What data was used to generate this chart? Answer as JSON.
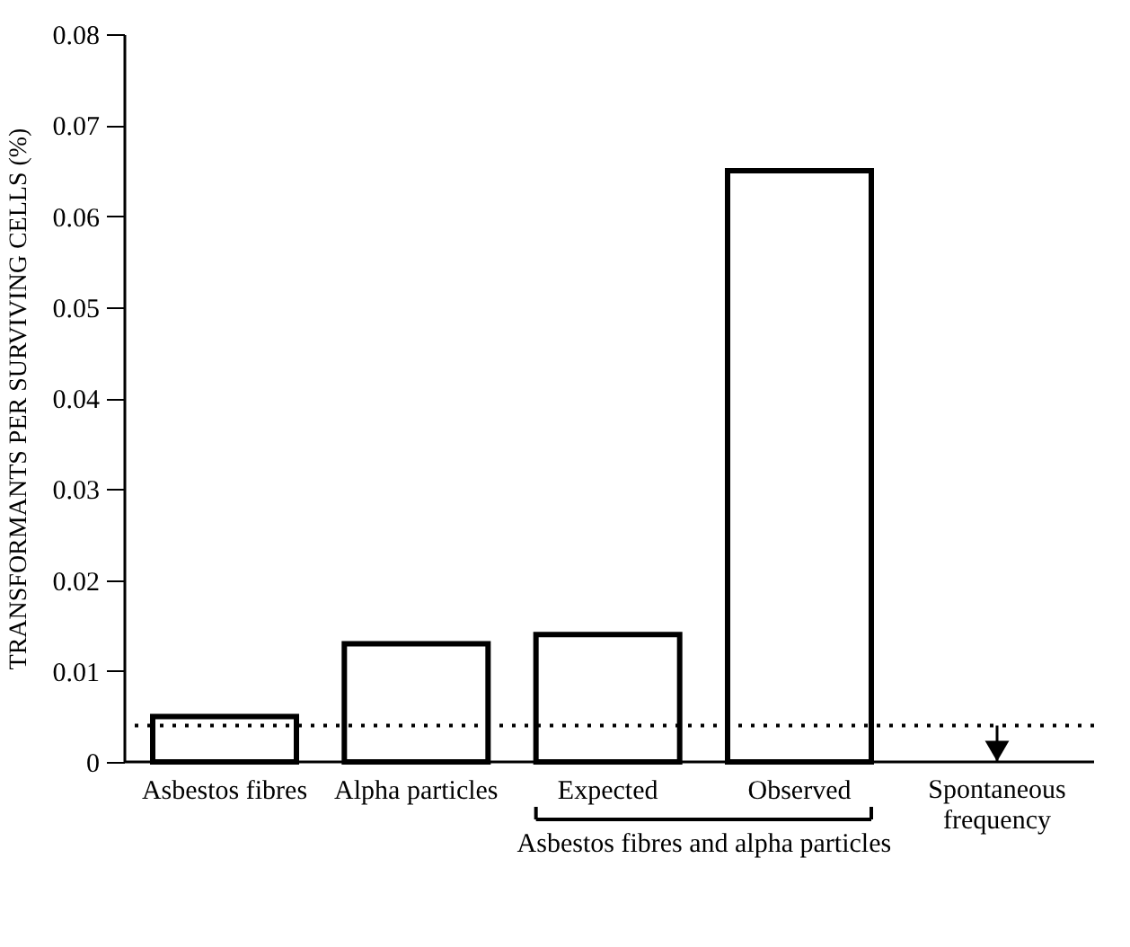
{
  "chart_data": {
    "type": "bar",
    "ylabel": "TRANSFORMANTS PER SURVIVING CELLS (%)",
    "categories": [
      "Asbestos fibres",
      "Alpha particles",
      "Expected",
      "Observed"
    ],
    "values": [
      0.005,
      0.013,
      0.014,
      0.065
    ],
    "color": "#ffffff",
    "ylim": [
      0,
      0.08
    ],
    "yticks": [
      0,
      0.01,
      0.02,
      0.03,
      0.04,
      0.05,
      0.06,
      0.07,
      0.08
    ],
    "grid": false,
    "ref_lines": [
      {
        "axis": "y",
        "value": 0.004,
        "label": "Spontaneous frequency",
        "line_style": "dotted"
      }
    ],
    "annotations": [
      "Asbestos fibres and alpha particles"
    ]
  }
}
